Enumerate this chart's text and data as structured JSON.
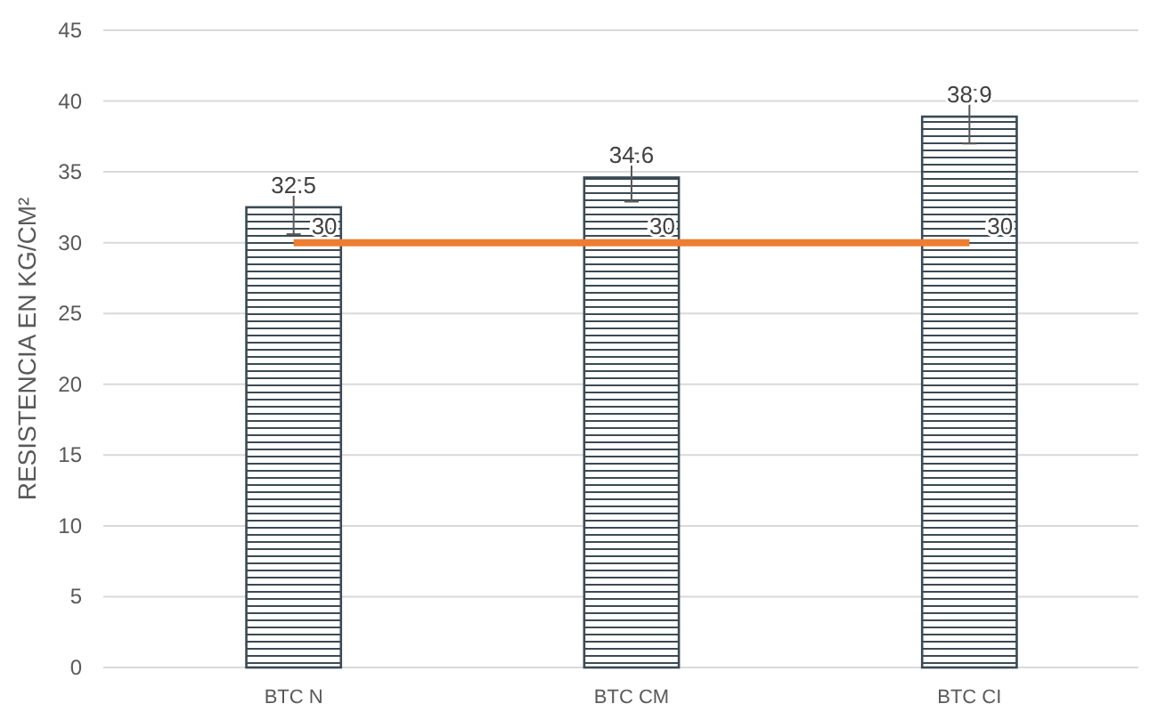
{
  "chart_data": {
    "type": "bar",
    "ylabel": "RESISTENCIA EN KG/CM²",
    "categories": [
      "BTC N",
      "BTC CM",
      "BTC CI"
    ],
    "series": [
      {
        "color": "#3b4a54",
        "values": [
          32.5,
          34.6,
          38.9
        ],
        "errors": [
          1.9,
          1.7,
          1.9
        ]
      },
      {
        "type": "line",
        "color": "#ed7d31",
        "values": [
          30,
          30,
          30
        ],
        "marker": "none"
      }
    ],
    "ylim": [
      0,
      45
    ],
    "yticks": [
      0,
      5,
      10,
      15,
      20,
      25,
      30,
      35,
      40,
      45
    ],
    "grid": "y",
    "data_labels": true
  }
}
